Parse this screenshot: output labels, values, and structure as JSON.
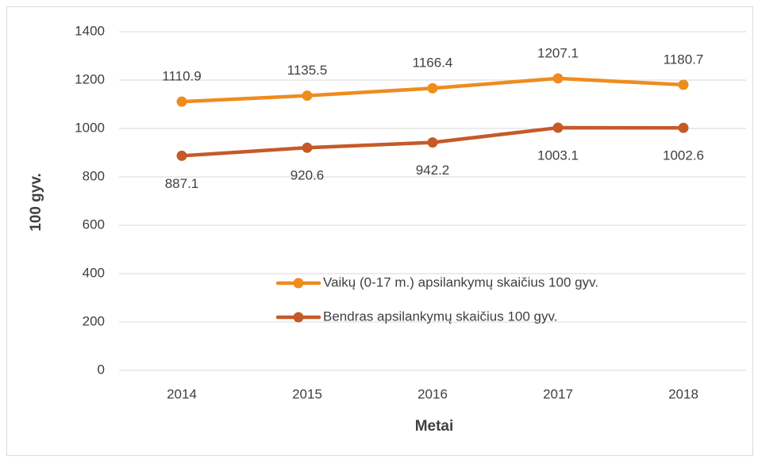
{
  "chart_data": {
    "type": "line",
    "categories": [
      "2014",
      "2015",
      "2016",
      "2017",
      "2018"
    ],
    "series": [
      {
        "name": "Vaikų (0-17 m.) apsilankymų skaičius 100 gyv.",
        "color": "#ee8c1e",
        "values": [
          1110.9,
          1135.5,
          1166.4,
          1207.1,
          1180.7
        ]
      },
      {
        "name": "Bendras apsilankymų skaičius 100 gyv.",
        "color": "#c55a28",
        "values": [
          887.1,
          920.6,
          942.2,
          1003.1,
          1002.6
        ]
      }
    ],
    "x_label": "Metai",
    "y_label": "100 gyv.",
    "ylim": [
      0,
      1400
    ],
    "yticks": [
      0,
      200,
      400,
      600,
      800,
      1000,
      1200,
      1400
    ],
    "grid": true
  }
}
